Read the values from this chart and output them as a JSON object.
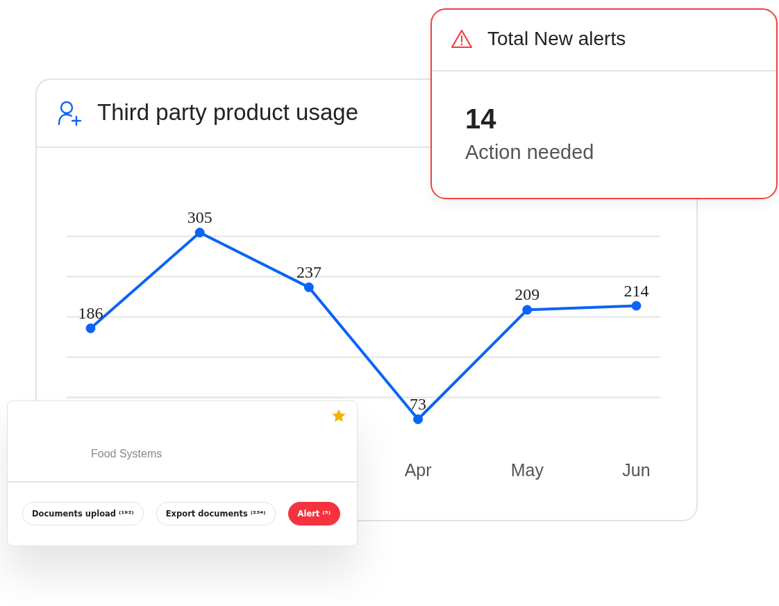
{
  "chart_data": [
    {
      "type": "line",
      "title": "Third party product usage",
      "categories": [
        null,
        null,
        null,
        "Apr",
        "May",
        "Jun"
      ],
      "series": [
        {
          "color": "#0a64f5",
          "values": [
            186,
            305,
            237,
            73,
            209,
            214
          ]
        }
      ],
      "grid": "y",
      "tick_labels": "x",
      "marker": "circle",
      "line_style": "solid",
      "data_labels": true
    },
    {
      "type": "other",
      "title": "Total New alerts",
      "annotations": [
        "14",
        "Action needed"
      ]
    },
    {
      "type": "other",
      "subtitle": "Food Systems",
      "annotations": [
        "Documents upload ⁽¹⁹²⁾",
        "Export documents ⁽²³⁴⁾",
        "Alert ⁽⁵⁾"
      ],
      "colors": [
        "#ffffff",
        "#ffffff",
        "#f5333f"
      ]
    }
  ]
}
